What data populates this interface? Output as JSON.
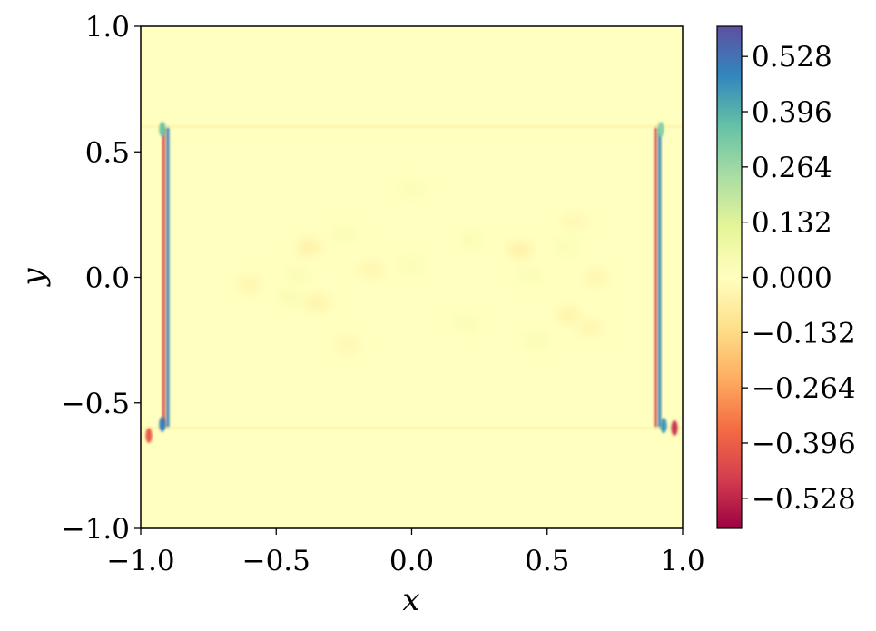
{
  "chart_data": {
    "type": "heatmap",
    "title": "",
    "xlabel": "x",
    "ylabel": "y",
    "xlim": [
      -1.0,
      1.0
    ],
    "ylim": [
      -1.0,
      1.0
    ],
    "x_ticks": [
      -1.0,
      -0.5,
      0.0,
      0.5,
      1.0
    ],
    "y_ticks": [
      -1.0,
      -0.5,
      0.0,
      0.5,
      1.0
    ],
    "x_tick_labels": [
      "−1.0",
      "−0.5",
      "0.0",
      "0.5",
      "1.0"
    ],
    "y_tick_labels": [
      "−1.0",
      "−0.5",
      "0.0",
      "0.5",
      "1.0"
    ],
    "colorbar": {
      "colormap": "Spectral",
      "range": [
        -0.6,
        0.6
      ],
      "ticks": [
        0.528,
        0.396,
        0.264,
        0.132,
        0.0,
        -0.132,
        -0.264,
        -0.396,
        -0.528
      ],
      "tick_labels": [
        "0.528",
        "0.396",
        "0.264",
        "0.132",
        "0.000",
        "−0.132",
        "−0.264",
        "−0.396",
        "−0.528"
      ],
      "colors": [
        "#9e0142",
        "#d53e4f",
        "#f46d43",
        "#fdae61",
        "#fee08b",
        "#ffffbf",
        "#e6f598",
        "#abdda4",
        "#66c2a5",
        "#3288bd",
        "#5e4fa2"
      ]
    },
    "background_value": 0.0,
    "features": [
      {
        "kind": "vline",
        "x": -0.9,
        "y_range": [
          -0.6,
          0.6
        ],
        "value": 0.5
      },
      {
        "kind": "vline",
        "x": -0.915,
        "y_range": [
          -0.6,
          0.6
        ],
        "value": -0.45
      },
      {
        "kind": "vline",
        "x": 0.9,
        "y_range": [
          -0.6,
          0.6
        ],
        "value": -0.45
      },
      {
        "kind": "vline",
        "x": 0.915,
        "y_range": [
          -0.6,
          0.6
        ],
        "value": 0.5
      },
      {
        "kind": "hline",
        "y": 0.6,
        "x_range": [
          -1.0,
          1.0
        ],
        "value": -0.05
      },
      {
        "kind": "hline",
        "y": -0.6,
        "x_range": [
          -1.0,
          1.0
        ],
        "value": -0.05
      },
      {
        "kind": "blob",
        "x": -0.92,
        "y": -0.585,
        "value": 0.5
      },
      {
        "kind": "blob",
        "x": 0.93,
        "y": -0.59,
        "value": 0.45
      },
      {
        "kind": "blob",
        "x": -0.92,
        "y": 0.59,
        "value": 0.35
      },
      {
        "kind": "blob",
        "x": 0.92,
        "y": 0.59,
        "value": 0.3
      },
      {
        "kind": "blob",
        "x": -0.97,
        "y": -0.63,
        "value": -0.4
      },
      {
        "kind": "blob",
        "x": 0.97,
        "y": -0.6,
        "value": -0.5
      },
      {
        "kind": "blob",
        "x": -0.38,
        "y": 0.12,
        "value": -0.06
      },
      {
        "kind": "blob",
        "x": -0.35,
        "y": -0.1,
        "value": -0.05
      },
      {
        "kind": "blob",
        "x": -0.45,
        "y": -0.08,
        "value": 0.04
      },
      {
        "kind": "blob",
        "x": -0.42,
        "y": 0.01,
        "value": 0.03
      },
      {
        "kind": "blob",
        "x": -0.6,
        "y": -0.03,
        "value": -0.04
      },
      {
        "kind": "blob",
        "x": -0.25,
        "y": 0.17,
        "value": 0.03
      },
      {
        "kind": "blob",
        "x": -0.15,
        "y": 0.03,
        "value": -0.04
      },
      {
        "kind": "blob",
        "x": 0.0,
        "y": 0.35,
        "value": 0.03
      },
      {
        "kind": "blob",
        "x": 0.0,
        "y": 0.05,
        "value": 0.03
      },
      {
        "kind": "blob",
        "x": 0.22,
        "y": 0.15,
        "value": 0.03
      },
      {
        "kind": "blob",
        "x": 0.4,
        "y": 0.11,
        "value": -0.06
      },
      {
        "kind": "blob",
        "x": 0.43,
        "y": 0.01,
        "value": 0.03
      },
      {
        "kind": "blob",
        "x": 0.57,
        "y": 0.12,
        "value": 0.03
      },
      {
        "kind": "blob",
        "x": 0.68,
        "y": 0.0,
        "value": -0.04
      },
      {
        "kind": "blob",
        "x": 0.58,
        "y": -0.15,
        "value": -0.05
      },
      {
        "kind": "blob",
        "x": 0.66,
        "y": -0.2,
        "value": -0.04
      },
      {
        "kind": "blob",
        "x": 0.46,
        "y": -0.25,
        "value": 0.03
      },
      {
        "kind": "blob",
        "x": -0.24,
        "y": -0.27,
        "value": -0.03
      },
      {
        "kind": "blob",
        "x": 0.2,
        "y": -0.18,
        "value": 0.03
      },
      {
        "kind": "blob",
        "x": 0.6,
        "y": 0.22,
        "value": -0.03
      }
    ]
  }
}
